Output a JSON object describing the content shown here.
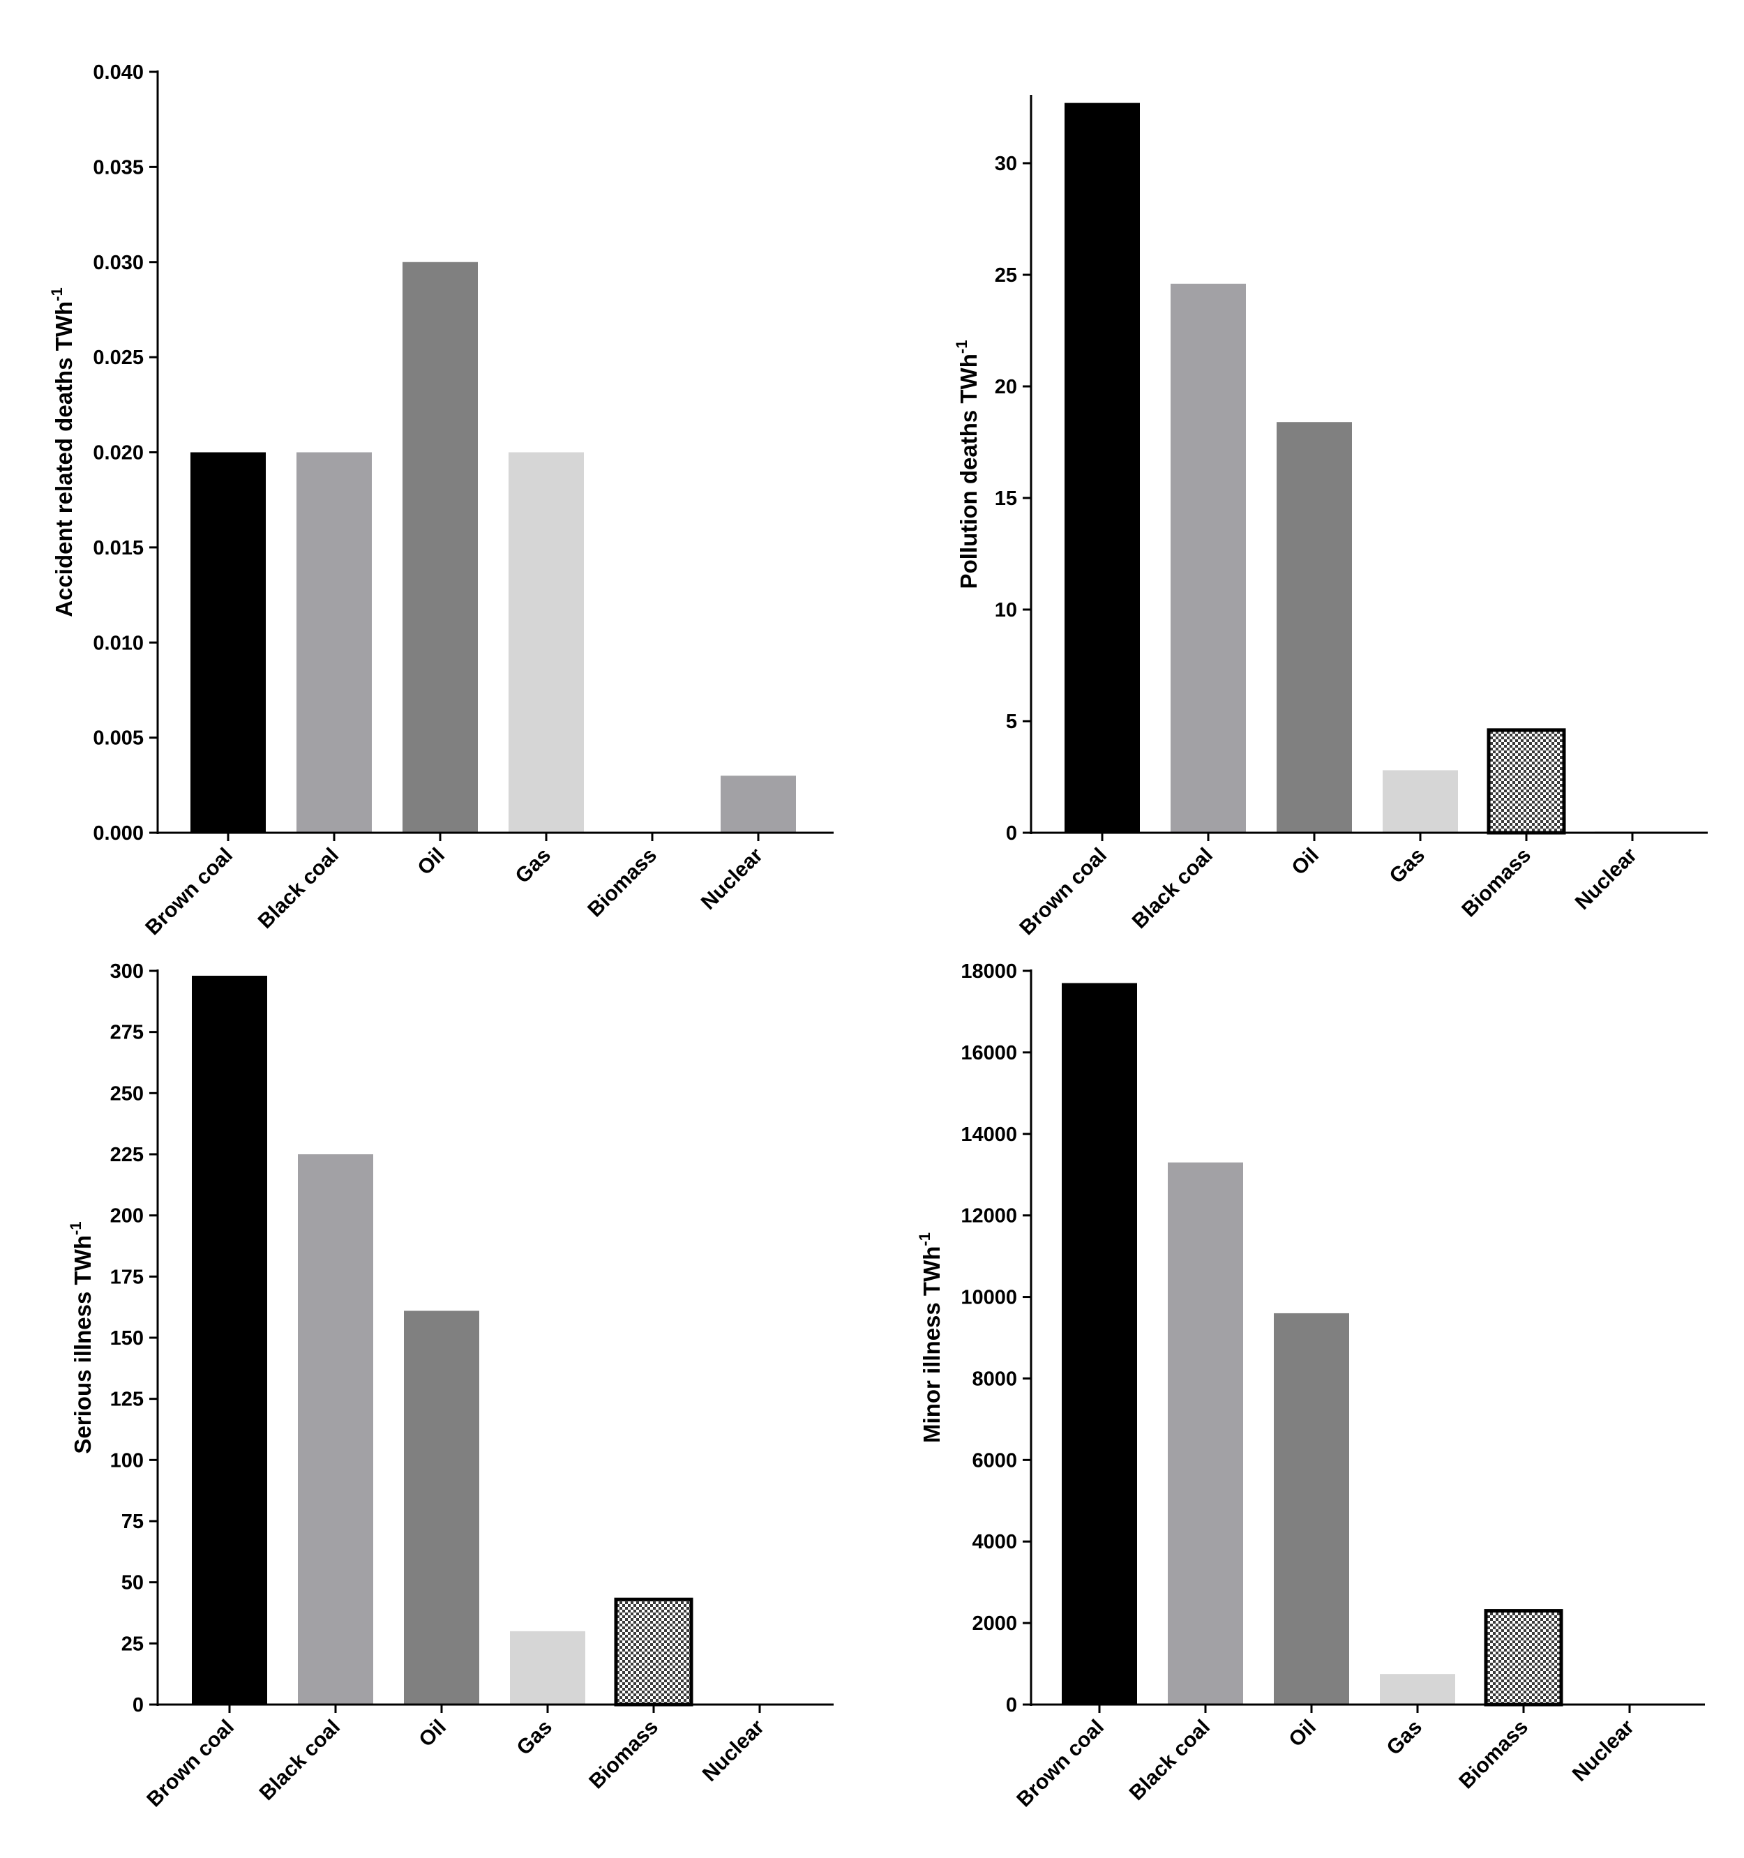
{
  "chart_data": [
    {
      "type": "bar",
      "categories": [
        "Brown coal",
        "Black coal",
        "Oil",
        "Gas",
        "Biomass",
        "Nuclear"
      ],
      "values": [
        0.02,
        0.02,
        0.03,
        0.02,
        0,
        0.003
      ],
      "bar_colors": [
        "#000000",
        "#a2a1a5",
        "#808080",
        "#d6d6d6",
        "#ffffff",
        "#a2a1a5"
      ],
      "patterned": [
        false,
        false,
        false,
        false,
        false,
        false
      ],
      "ylabel": "Accident related deaths TWh",
      "ylabel_sup": "-1",
      "ylim": [
        0,
        0.04
      ],
      "yticks": [
        0,
        0.005,
        0.01,
        0.015,
        0.02,
        0.025,
        0.03,
        0.035,
        0.04
      ],
      "ytick_labels": [
        "0.000",
        "0.005",
        "0.010",
        "0.015",
        "0.020",
        "0.025",
        "0.030",
        "0.035",
        "0.040"
      ],
      "grid": false,
      "legend": "none"
    },
    {
      "type": "bar",
      "categories": [
        "Brown coal",
        "Black coal",
        "Oil",
        "Gas",
        "Biomass",
        "Nuclear"
      ],
      "values": [
        32.7,
        24.6,
        18.4,
        2.8,
        4.6,
        0.05
      ],
      "bar_colors": [
        "#000000",
        "#a2a1a5",
        "#808080",
        "#d6d6d6",
        "#ffffff",
        "#a2a1a5"
      ],
      "patterned": [
        false,
        false,
        false,
        false,
        true,
        false
      ],
      "ylabel": "Pollution deaths TWh",
      "ylabel_sup": "-1",
      "ylim": [
        0,
        33
      ],
      "yticks": [
        0,
        5,
        10,
        15,
        20,
        25,
        30
      ],
      "ytick_labels": [
        "0",
        "5",
        "10",
        "15",
        "20",
        "25",
        "30"
      ],
      "grid": false,
      "legend": "none"
    },
    {
      "type": "bar",
      "categories": [
        "Brown coal",
        "Black coal",
        "Oil",
        "Gas",
        "Biomass",
        "Nuclear"
      ],
      "values": [
        298,
        225,
        161,
        30,
        43,
        0.2
      ],
      "bar_colors": [
        "#000000",
        "#a2a1a5",
        "#808080",
        "#d6d6d6",
        "#ffffff",
        "#a2a1a5"
      ],
      "patterned": [
        false,
        false,
        false,
        false,
        true,
        false
      ],
      "ylabel": "Serious illness TWh",
      "ylabel_sup": "-1",
      "ylim": [
        0,
        300
      ],
      "yticks": [
        0,
        25,
        50,
        75,
        100,
        125,
        150,
        175,
        200,
        225,
        250,
        275,
        300
      ],
      "ytick_labels": [
        "0",
        "25",
        "50",
        "75",
        "100",
        "125",
        "150",
        "175",
        "200",
        "225",
        "250",
        "275",
        "300"
      ],
      "grid": false,
      "legend": "none"
    },
    {
      "type": "bar",
      "categories": [
        "Brown coal",
        "Black coal",
        "Oil",
        "Gas",
        "Biomass",
        "Nuclear"
      ],
      "values": [
        17700,
        13300,
        9600,
        750,
        2300,
        0
      ],
      "bar_colors": [
        "#000000",
        "#a2a1a5",
        "#808080",
        "#d6d6d6",
        "#ffffff",
        "#a2a1a5"
      ],
      "patterned": [
        false,
        false,
        false,
        false,
        true,
        false
      ],
      "ylabel": "Minor illness TWh",
      "ylabel_sup": "-1",
      "ylim": [
        0,
        18000
      ],
      "yticks": [
        0,
        2000,
        4000,
        6000,
        8000,
        10000,
        12000,
        14000,
        16000,
        18000
      ],
      "ytick_labels": [
        "0",
        "2000",
        "4000",
        "6000",
        "8000",
        "10000",
        "12000",
        "14000",
        "16000",
        "18000"
      ],
      "grid": false,
      "legend": "none"
    }
  ]
}
